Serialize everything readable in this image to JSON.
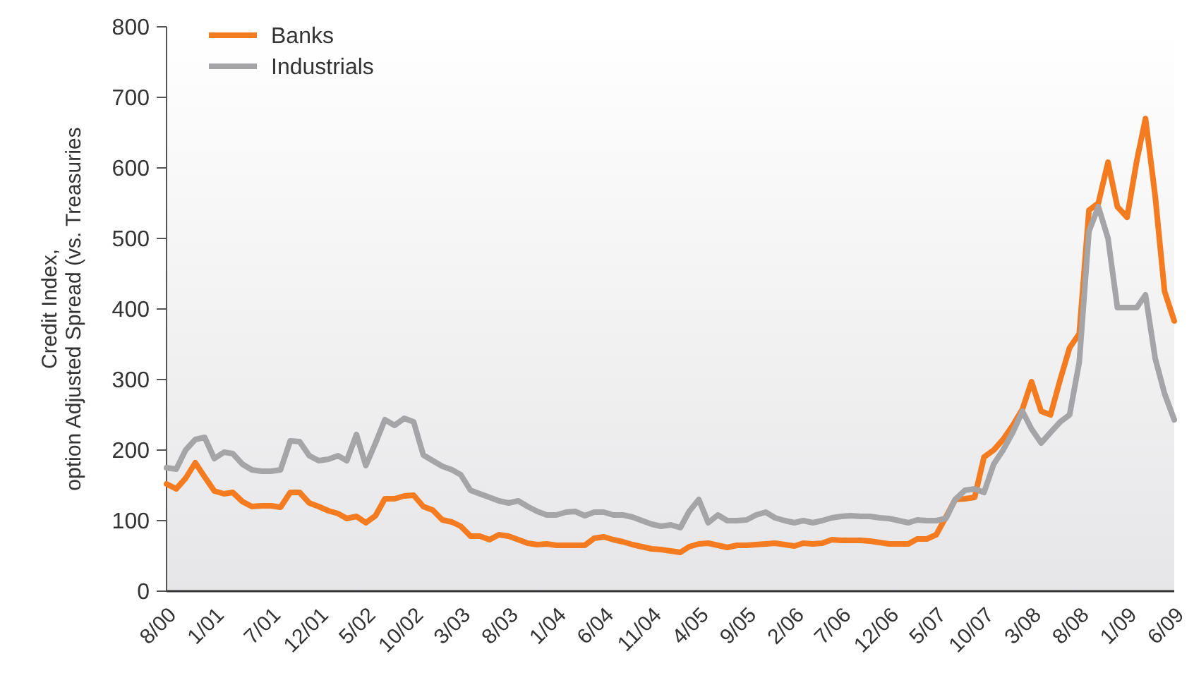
{
  "chart_data": {
    "type": "line",
    "ylabel": "Credit Index,\noption Adjusted Spread (vs. Treasuries",
    "x": [
      "2000-08",
      "2000-09",
      "2000-10",
      "2000-11",
      "2000-12",
      "2001-01",
      "2001-02",
      "2001-03",
      "2001-04",
      "2001-05",
      "2001-06",
      "2001-07",
      "2001-08",
      "2001-09",
      "2001-10",
      "2001-11",
      "2001-12",
      "2002-01",
      "2002-02",
      "2002-03",
      "2002-04",
      "2002-05",
      "2002-06",
      "2002-07",
      "2002-08",
      "2002-09",
      "2002-10",
      "2002-11",
      "2002-12",
      "2003-01",
      "2003-02",
      "2003-03",
      "2003-04",
      "2003-05",
      "2003-06",
      "2003-07",
      "2003-08",
      "2003-09",
      "2003-10",
      "2003-11",
      "2003-12",
      "2004-01",
      "2004-02",
      "2004-03",
      "2004-04",
      "2004-05",
      "2004-06",
      "2004-07",
      "2004-08",
      "2004-09",
      "2004-10",
      "2004-11",
      "2004-12",
      "2005-01",
      "2005-02",
      "2005-03",
      "2005-04",
      "2005-05",
      "2005-06",
      "2005-07",
      "2005-08",
      "2005-09",
      "2005-10",
      "2005-11",
      "2005-12",
      "2006-01",
      "2006-02",
      "2006-03",
      "2006-04",
      "2006-05",
      "2006-06",
      "2006-07",
      "2006-08",
      "2006-09",
      "2006-10",
      "2006-11",
      "2006-12",
      "2007-01",
      "2007-02",
      "2007-03",
      "2007-04",
      "2007-05",
      "2007-06",
      "2007-07",
      "2007-08",
      "2007-09",
      "2007-10",
      "2007-11",
      "2007-12",
      "2008-01",
      "2008-02",
      "2008-03",
      "2008-04",
      "2008-05",
      "2008-06",
      "2008-07",
      "2008-08",
      "2008-09",
      "2008-10",
      "2008-11",
      "2008-12",
      "2009-01",
      "2009-02",
      "2009-03",
      "2009-04",
      "2009-05",
      "2009-06"
    ],
    "series": [
      {
        "name": "Banks",
        "color": "#f47b20",
        "values": [
          152,
          145,
          160,
          182,
          162,
          142,
          138,
          140,
          127,
          120,
          121,
          121,
          119,
          140,
          140,
          125,
          120,
          114,
          110,
          103,
          106,
          97,
          107,
          131,
          131,
          135,
          136,
          120,
          115,
          101,
          98,
          92,
          78,
          78,
          73,
          80,
          78,
          73,
          68,
          66,
          67,
          65,
          65,
          65,
          65,
          75,
          77,
          73,
          70,
          66,
          63,
          60,
          59,
          57,
          55,
          63,
          67,
          68,
          65,
          62,
          65,
          65,
          66,
          67,
          68,
          66,
          64,
          68,
          67,
          68,
          73,
          72,
          72,
          72,
          71,
          69,
          67,
          67,
          67,
          74,
          74,
          80,
          105,
          130,
          131,
          133,
          190,
          200,
          215,
          235,
          258,
          297,
          255,
          250,
          300,
          345,
          365,
          540,
          550,
          608,
          545,
          530,
          610,
          670,
          560,
          425,
          383
        ]
      },
      {
        "name": "Industrials",
        "color": "#a5a5a8",
        "values": [
          175,
          173,
          200,
          215,
          218,
          188,
          197,
          195,
          180,
          172,
          170,
          170,
          172,
          213,
          212,
          192,
          185,
          187,
          192,
          185,
          222,
          178,
          210,
          243,
          235,
          245,
          240,
          193,
          185,
          177,
          172,
          165,
          143,
          138,
          133,
          128,
          125,
          128,
          120,
          113,
          108,
          108,
          112,
          113,
          107,
          112,
          112,
          108,
          108,
          105,
          100,
          95,
          92,
          94,
          90,
          113,
          130,
          97,
          108,
          100,
          100,
          101,
          108,
          112,
          104,
          100,
          97,
          100,
          97,
          100,
          104,
          106,
          107,
          106,
          106,
          104,
          103,
          100,
          97,
          101,
          100,
          100,
          103,
          130,
          143,
          145,
          140,
          180,
          200,
          225,
          255,
          230,
          210,
          225,
          240,
          250,
          325,
          510,
          545,
          500,
          402,
          402,
          402,
          420,
          330,
          280,
          243
        ]
      }
    ],
    "xlim": [
      "2000-08",
      "2009-06"
    ],
    "xticks": [
      {
        "value": "2000-08",
        "label": "8/00"
      },
      {
        "value": "2001-01",
        "label": "1/01"
      },
      {
        "value": "2001-07",
        "label": "7/01"
      },
      {
        "value": "2001-12",
        "label": "12/01"
      },
      {
        "value": "2002-05",
        "label": "5/02"
      },
      {
        "value": "2002-10",
        "label": "10/02"
      },
      {
        "value": "2003-03",
        "label": "3/03"
      },
      {
        "value": "2003-08",
        "label": "8/03"
      },
      {
        "value": "2004-01",
        "label": "1/04"
      },
      {
        "value": "2004-06",
        "label": "6/04"
      },
      {
        "value": "2004-11",
        "label": "11/04"
      },
      {
        "value": "2005-04",
        "label": "4/05"
      },
      {
        "value": "2005-09",
        "label": "9/05"
      },
      {
        "value": "2006-02",
        "label": "2/06"
      },
      {
        "value": "2006-07",
        "label": "7/06"
      },
      {
        "value": "2006-12",
        "label": "12/06"
      },
      {
        "value": "2007-05",
        "label": "5/07"
      },
      {
        "value": "2007-10",
        "label": "10/07"
      },
      {
        "value": "2008-03",
        "label": "3/08"
      },
      {
        "value": "2008-08",
        "label": "8/08"
      },
      {
        "value": "2009-01",
        "label": "1/09"
      },
      {
        "value": "2009-06",
        "label": "6/09"
      }
    ],
    "ylim": [
      0,
      800
    ],
    "yticks": [
      0,
      100,
      200,
      300,
      400,
      500,
      600,
      700,
      800
    ],
    "grid": false,
    "legend": "top left",
    "marker": "none",
    "line_style": "solid"
  }
}
